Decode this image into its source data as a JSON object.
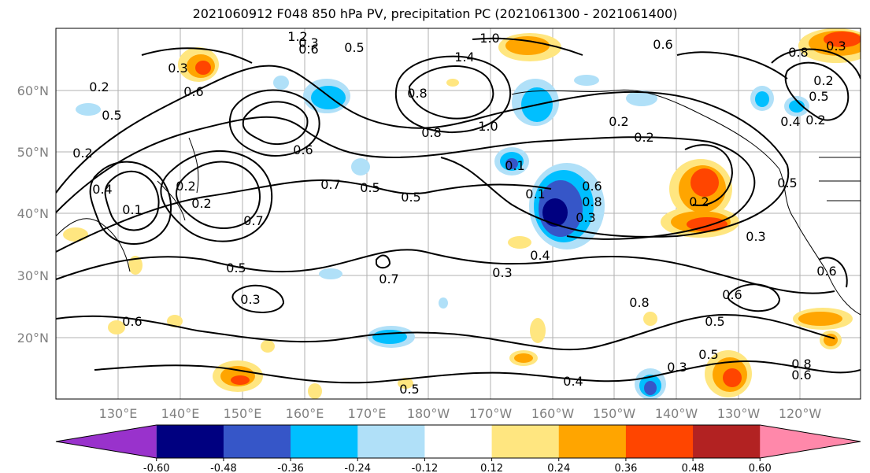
{
  "title": "2021060912 F048 850 hPa PV, precipitation PC (2021061300 - 2021061400)",
  "lat_ticks": [
    "60°N",
    "50°N",
    "40°N",
    "30°N",
    "20°N"
  ],
  "lon_ticks": [
    "130°E",
    "140°E",
    "150°E",
    "160°E",
    "170°E",
    "180°W",
    "170°W",
    "160°W",
    "150°W",
    "140°W",
    "130°W",
    "120°W"
  ],
  "colorbar": {
    "ticks": [
      "-0.60",
      "-0.48",
      "-0.36",
      "-0.24",
      "-0.12",
      "0.12",
      "0.24",
      "0.36",
      "0.48",
      "0.60"
    ],
    "colors": [
      "#9932cc",
      "#000080",
      "#3656c8",
      "#00bfff",
      "#b0e0f8",
      "#ffffff",
      "#ffe680",
      "#ffa500",
      "#ff4500",
      "#b22222",
      "#ff88aa"
    ]
  },
  "contour_labels": [
    "1.2",
    "0.6",
    "0.5",
    "0.3",
    "1.0",
    "1.4",
    "0.2",
    "0.3",
    "0.6",
    "0.8",
    "1.0",
    "0.8",
    "0.2",
    "0.5",
    "0.6",
    "0.7",
    "0.5",
    "0.5",
    "0.1",
    "0.6",
    "0.8",
    "0.1",
    "0.7",
    "0.5",
    "0.3",
    "0.7",
    "0.3",
    "0.4",
    "0.6",
    "0.8",
    "0.6",
    "0.5",
    "0.5",
    "0.3",
    "0.4",
    "0.5",
    "0.8",
    "0.6",
    "0.2",
    "0.2",
    "0.2",
    "0.2",
    "0.3",
    "0.6",
    "0.5",
    "0.2",
    "0.2",
    "0.4",
    "0.1",
    "0.3",
    "0.6",
    "0.8",
    "0.5",
    "0.4",
    "0.3",
    "0.2"
  ]
}
